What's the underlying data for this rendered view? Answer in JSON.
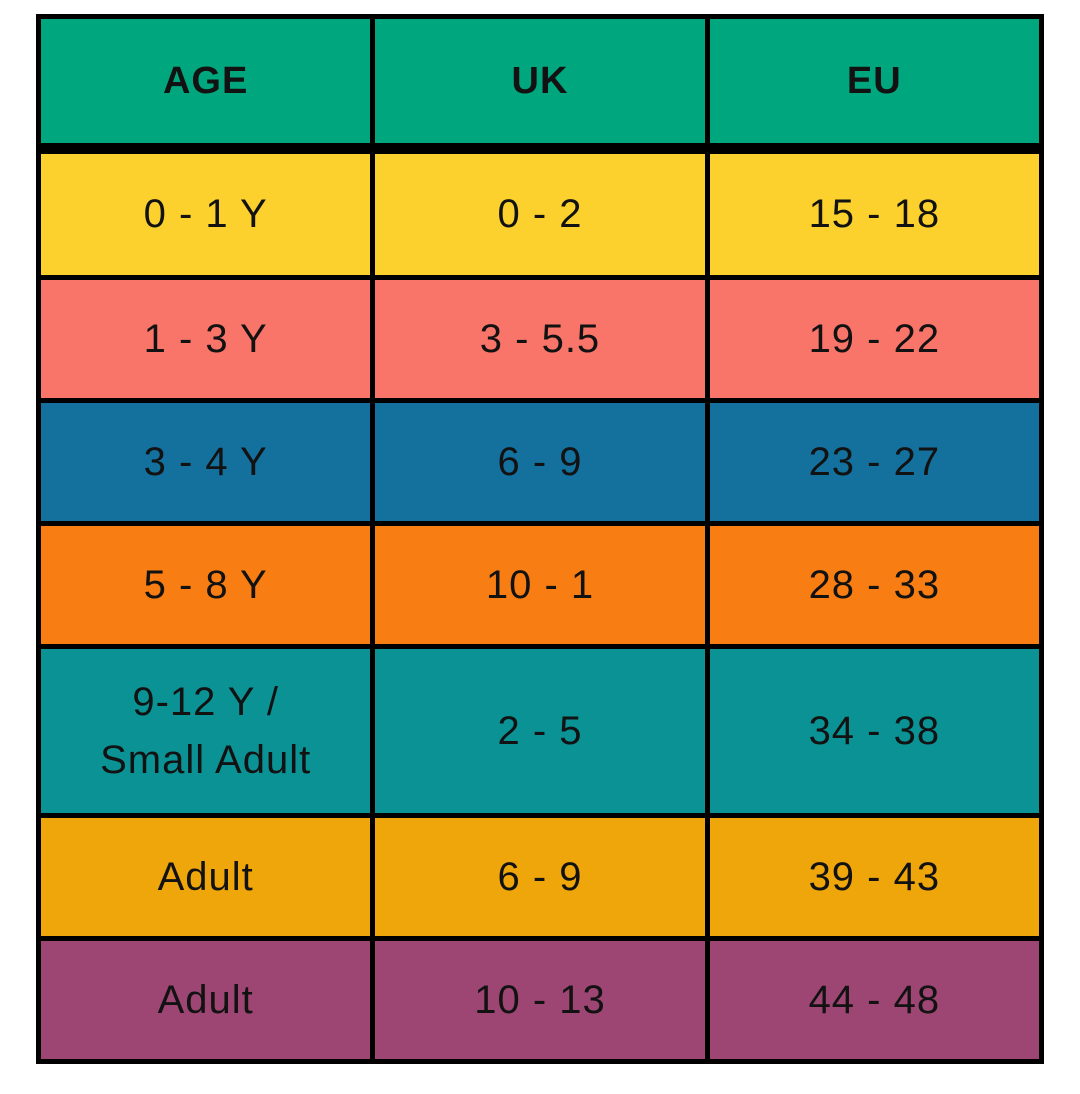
{
  "chart_data": {
    "type": "table",
    "title": "",
    "columns": [
      "AGE",
      "UK",
      "EU"
    ],
    "rows": [
      [
        "0 - 1 Y",
        "0 - 2",
        "15 - 18"
      ],
      [
        "1 - 3 Y",
        "3 - 5.5",
        "19 - 22"
      ],
      [
        "3 - 4 Y",
        "6 - 9",
        "23 - 27"
      ],
      [
        "5 - 8 Y",
        "10 - 1",
        "28 - 33"
      ],
      [
        "9-12 Y / Small Adult",
        "2 - 5",
        "34 - 38"
      ],
      [
        "Adult",
        "6 - 9",
        "39 - 43"
      ],
      [
        "Adult",
        "10 - 13",
        "44 - 48"
      ]
    ],
    "row_colors": [
      "#FCD12D",
      "#F97569",
      "#14719E",
      "#F87D13",
      "#0A9295",
      "#EFA60B",
      "#9D4673"
    ],
    "header_color": "#00A77E",
    "grid": "on",
    "border_color": "#000000",
    "text_color": "#121212"
  },
  "table": {
    "header": {
      "bg": "#00A77E",
      "col1": "AGE",
      "col2": "UK",
      "col3": "EU"
    },
    "rows": [
      {
        "bg": "#FCD12D",
        "age": "0 - 1 Y",
        "uk": "0 - 2",
        "eu": "15 - 18"
      },
      {
        "bg": "#F97569",
        "age": "1 - 3 Y",
        "uk": "3 - 5.5",
        "eu": "19 - 22"
      },
      {
        "bg": "#14719E",
        "age": "3 - 4 Y",
        "uk": "6 - 9",
        "eu": "23 - 27"
      },
      {
        "bg": "#F87D13",
        "age": "5 - 8 Y",
        "uk": "10 - 1",
        "eu": "28 - 33"
      },
      {
        "bg": "#0A9295",
        "age": "9-12 Y /\nSmall Adult",
        "uk": "2 - 5",
        "eu": "34 - 38"
      },
      {
        "bg": "#EFA60B",
        "age": "Adult",
        "uk": "6 - 9",
        "eu": "39 - 43"
      },
      {
        "bg": "#9D4673",
        "age": "Adult",
        "uk": "10 - 13",
        "eu": "44 - 48"
      }
    ]
  }
}
